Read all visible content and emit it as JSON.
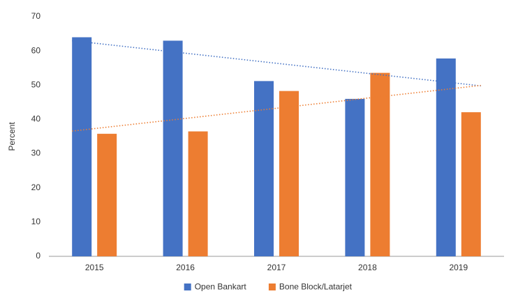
{
  "chart_data": {
    "type": "bar",
    "y_label": "Percent",
    "categories": [
      "2015",
      "2016",
      "2017",
      "2018",
      "2019"
    ],
    "series": [
      {
        "name": "Open Bankart",
        "color": "#4472c4",
        "values": [
          64,
          63,
          51.2,
          46,
          57.8
        ],
        "trendline": true
      },
      {
        "name": "Bone Block/Latarjet",
        "color": "#ed7d31",
        "values": [
          35.8,
          36.5,
          48.3,
          53.6,
          42.1
        ],
        "trendline": true
      }
    ],
    "ylim": [
      0,
      70
    ],
    "yticks": [
      0,
      10,
      20,
      30,
      40,
      50,
      60,
      70
    ],
    "grid": false,
    "legend": "bottom"
  }
}
